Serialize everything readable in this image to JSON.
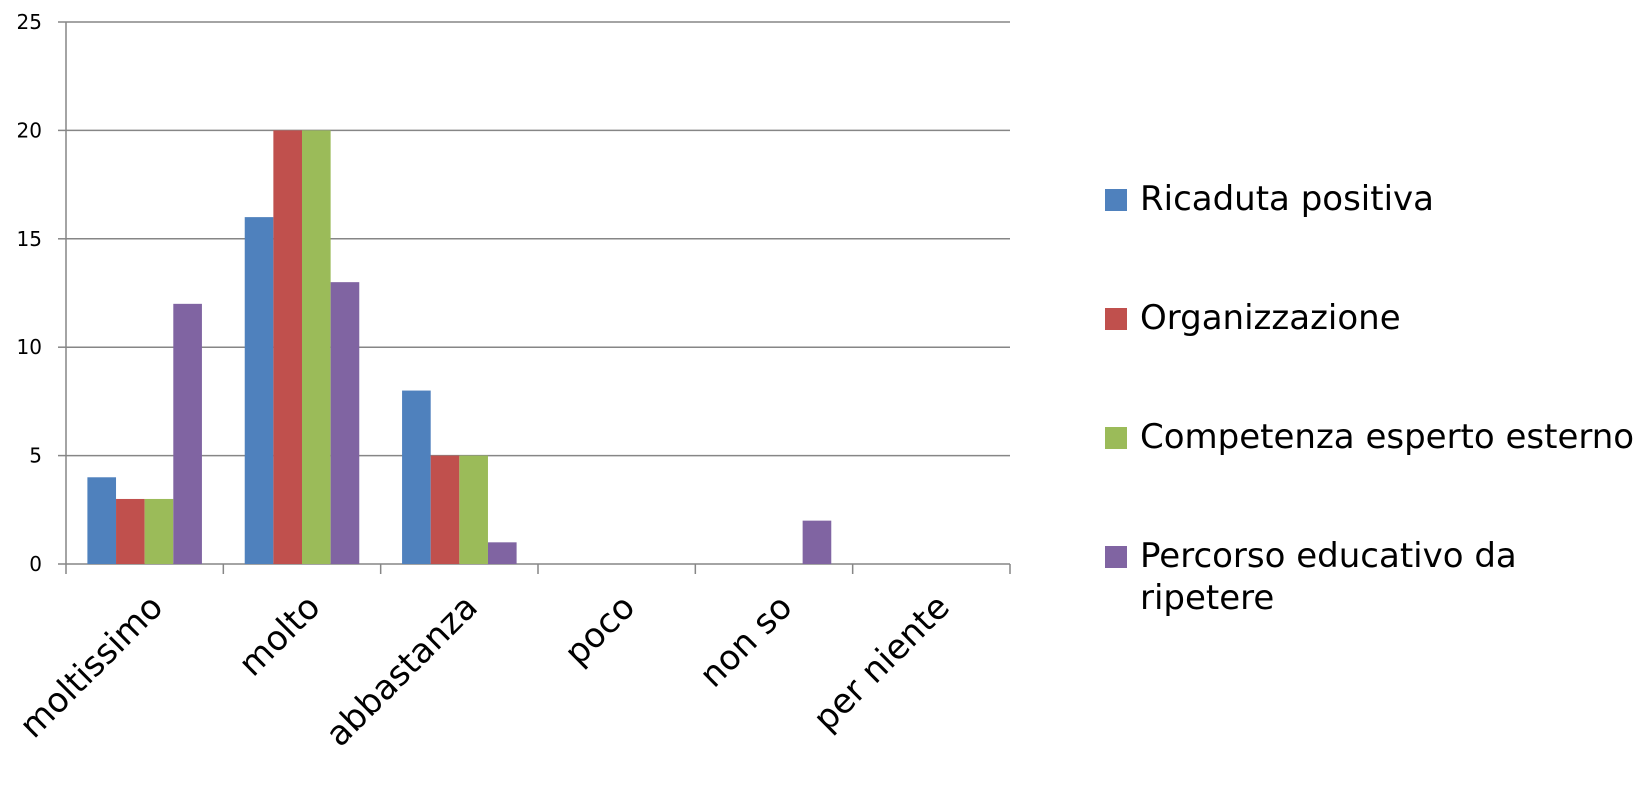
{
  "chart_data": {
    "type": "bar",
    "categories": [
      "moltissimo",
      "molto",
      "abbastanza",
      "poco",
      "non so",
      "per niente"
    ],
    "series": [
      {
        "name": "Ricaduta positiva",
        "color": "#4F81BD",
        "values": [
          4,
          16,
          8,
          0,
          0,
          0
        ]
      },
      {
        "name": "Organizzazione",
        "color": "#C0504D",
        "values": [
          3,
          20,
          5,
          0,
          0,
          0
        ]
      },
      {
        "name": "Competenza esperto esterno",
        "color": "#9BBB59",
        "values": [
          3,
          20,
          5,
          0,
          0,
          0
        ]
      },
      {
        "name": "Percorso educativo da ripetere",
        "color": "#8064A2",
        "values": [
          12,
          13,
          1,
          0,
          2,
          0
        ]
      }
    ],
    "yticks": [
      0,
      5,
      10,
      15,
      20,
      25
    ],
    "ylim": [
      0,
      25
    ],
    "grid": true,
    "legend": "right",
    "title": "",
    "xlabel": "",
    "ylabel": ""
  }
}
